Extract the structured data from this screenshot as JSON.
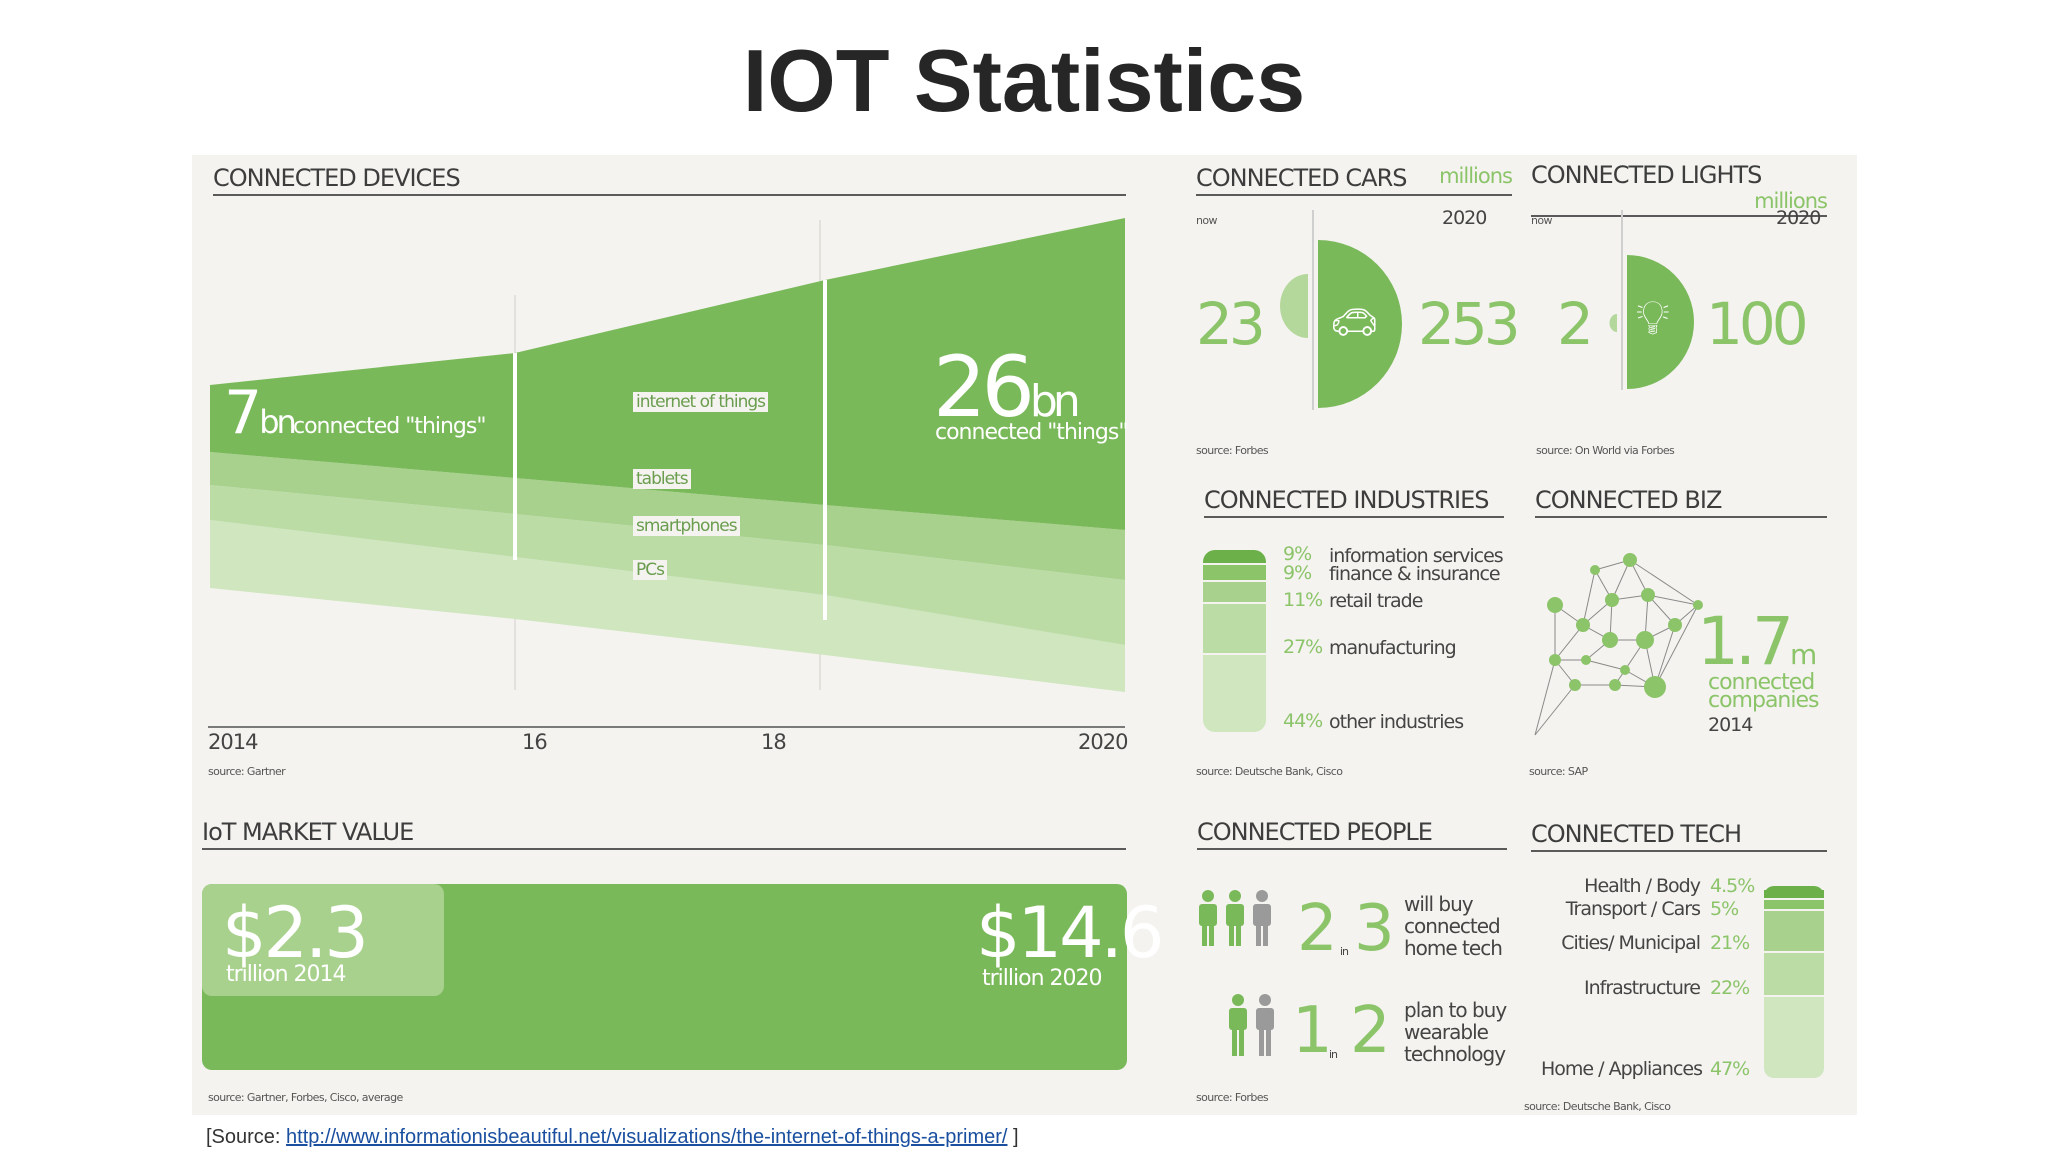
{
  "page": {
    "title": "IOT Statistics"
  },
  "colors": {
    "green_dark": "#6cb04a",
    "green_mid": "#8cc46a",
    "green_light": "#b4d89c",
    "green_pale": "#cfe6bf",
    "panel_bg": "#f4f3ef"
  },
  "devices": {
    "heading": "CONNECTED DEVICES",
    "left_value": "7",
    "left_unit": "bn",
    "left_caption": "connected \"things\"",
    "right_value": "26",
    "right_unit": "bn",
    "right_caption": "connected \"things\"",
    "layers": [
      "internet of things",
      "tablets",
      "smartphones",
      "PCs"
    ],
    "axis": [
      "2014",
      "16",
      "18",
      "2020"
    ],
    "source": "source: Gartner"
  },
  "market": {
    "heading": "IoT MARKET VALUE",
    "left_value": "$2.3",
    "left_caption": "trillion 2014",
    "right_value": "$14.6",
    "right_caption": "trillion 2020",
    "source": "source: Gartner, Forbes, Cisco, average"
  },
  "cars": {
    "heading": "CONNECTED CARS",
    "unit": "millions",
    "now_label": "now",
    "future_label": "2020",
    "now_value": "23",
    "future_value": "253",
    "icon": "car-icon",
    "source": "source: Forbes"
  },
  "lights": {
    "heading": "CONNECTED LIGHTS",
    "unit": "millions",
    "now_label": "now",
    "future_label": "2020",
    "now_value": "2",
    "future_value": "100",
    "icon": "light-bulb-icon",
    "source": "source: On World via Forbes"
  },
  "industries": {
    "heading": "CONNECTED INDUSTRIES",
    "items": [
      {
        "pct": "9%",
        "label": "information services"
      },
      {
        "pct": "9%",
        "label": "finance & insurance"
      },
      {
        "pct": "11%",
        "label": "retail trade"
      },
      {
        "pct": "27%",
        "label": "manufacturing"
      },
      {
        "pct": "44%",
        "label": "other industries"
      }
    ],
    "source": "source: Deutsche Bank, Cisco"
  },
  "biz": {
    "heading": "CONNECTED BIZ",
    "value": "1.7",
    "unit": "m",
    "caption1": "connected",
    "caption2": "companies",
    "year": "2014",
    "source": "source: SAP"
  },
  "people": {
    "heading": "CONNECTED PEOPLE",
    "row1": {
      "a": "2",
      "in": "in",
      "b": "3",
      "text1": "will buy",
      "text2": "connected",
      "text3": "home tech"
    },
    "row2": {
      "a": "1",
      "in": "in",
      "b": "2",
      "text1": "plan to buy",
      "text2": "wearable",
      "text3": "technology"
    },
    "source": "source: Forbes"
  },
  "tech": {
    "heading": "CONNECTED TECH",
    "items": [
      {
        "label": "Health / Body",
        "pct": "4.5%"
      },
      {
        "label": "Transport / Cars",
        "pct": "5%"
      },
      {
        "label": "Cities/ Municipal",
        "pct": "21%"
      },
      {
        "label": "Infrastructure",
        "pct": "22%"
      },
      {
        "label": "Home / Appliances",
        "pct": "47%"
      }
    ],
    "source": "source: Deutsche Bank, Cisco"
  },
  "footer": {
    "prefix": "[Source: ",
    "link": "http://www.informationisbeautiful.net/visualizations/the-internet-of-things-a-primer/",
    "suffix": " ]"
  }
}
